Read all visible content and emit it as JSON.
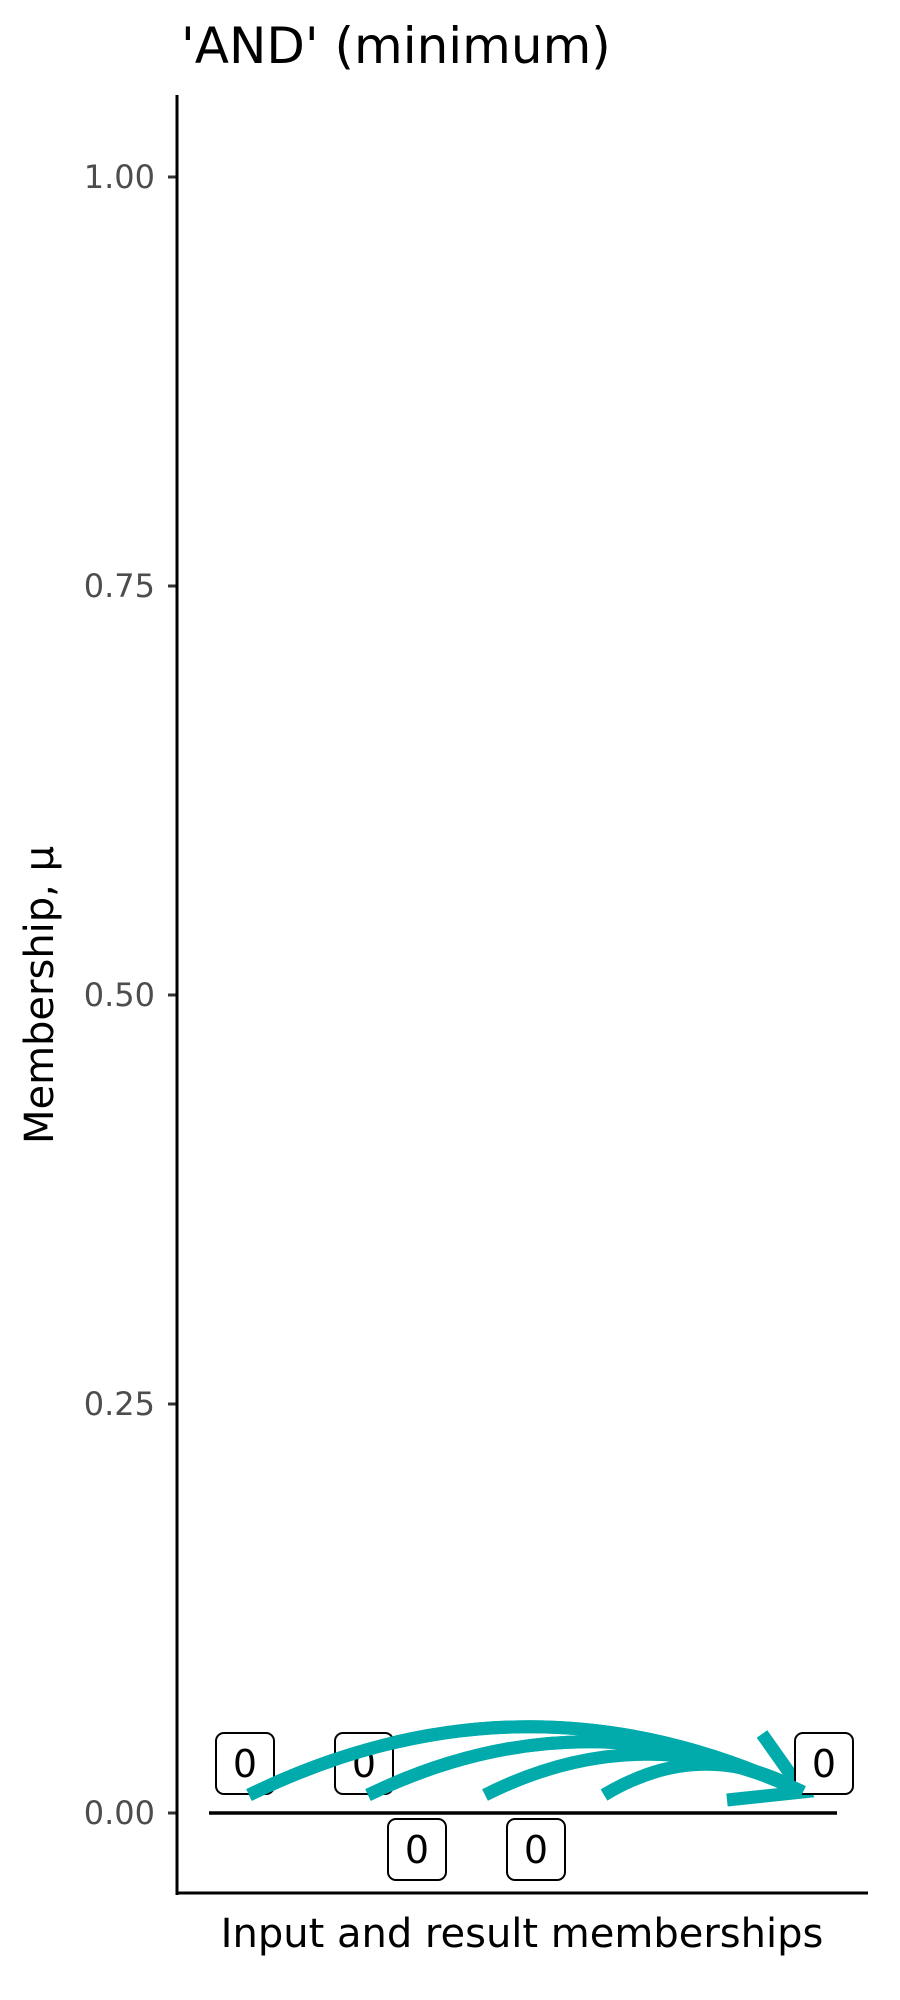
{
  "chart_data": {
    "type": "annotated-line",
    "title": "'AND' (minimum)",
    "xlabel": "Input and result memberships",
    "ylabel": "Membership, μ",
    "ylim": [
      -0.05,
      1.05
    ],
    "yticks": [
      0,
      0.25,
      0.5,
      0.75,
      1
    ],
    "ytick_labels": [
      "0.00",
      "0.25",
      "0.50",
      "0.75",
      "1.00"
    ],
    "grid": false,
    "baseline_y": 0,
    "inputs": [
      {
        "label": "0",
        "value": 0,
        "label_side": "above"
      },
      {
        "label": "0",
        "value": 0,
        "label_side": "above"
      },
      {
        "label": "0",
        "value": 0,
        "label_side": "below"
      },
      {
        "label": "0",
        "value": 0,
        "label_side": "below"
      }
    ],
    "result": {
      "label": "0",
      "value": 0,
      "label_side": "above"
    },
    "colors": {
      "arrow": "#02abab",
      "axis": "#000000",
      "tick_label": "#4d4d4d"
    }
  }
}
